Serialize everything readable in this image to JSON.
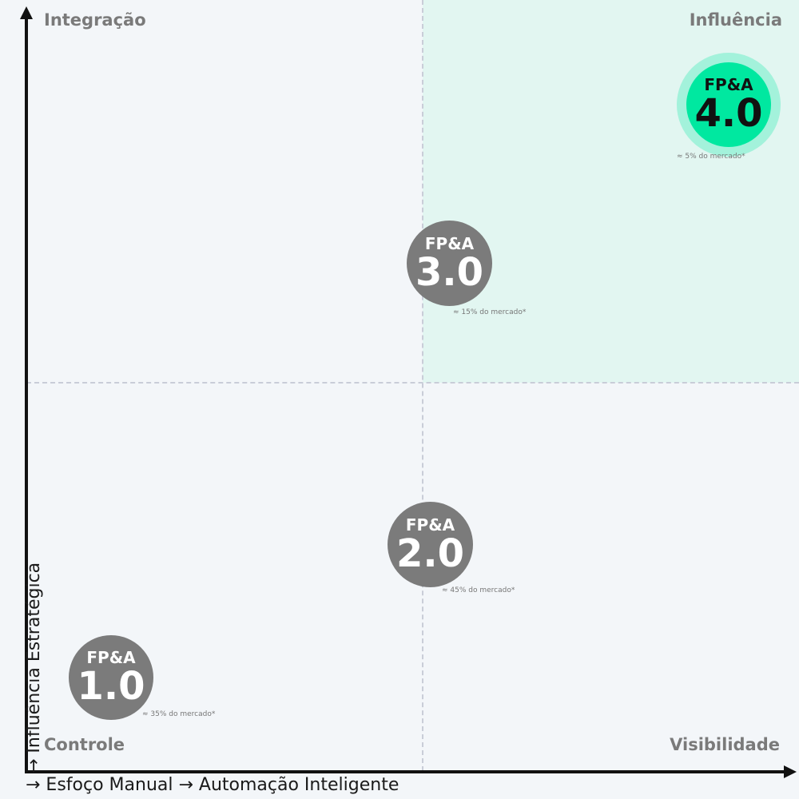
{
  "quadrants": {
    "top_left": "Integração",
    "top_right": "Influência",
    "bottom_left": "Controle",
    "bottom_right": "Visibilidade"
  },
  "axes": {
    "x_title": "→ Esfoço Manual → Automação Inteligente",
    "y_title": "→ Influência Estratégica"
  },
  "stages": [
    {
      "prefix": "FP&A",
      "version": "1.0",
      "share": "≈ 35% do mercado*"
    },
    {
      "prefix": "FP&A",
      "version": "2.0",
      "share": "≈ 45% do mercado*"
    },
    {
      "prefix": "FP&A",
      "version": "3.0",
      "share": "≈ 15% do mercado*"
    },
    {
      "prefix": "FP&A",
      "version": "4.0",
      "share": "≈ 5% do mercado*"
    }
  ],
  "colors": {
    "background": "#f3f6f9",
    "highlight_quadrant": "#e2f6f1",
    "stage_default": "#7b7b7b",
    "stage_current": "#00e8a0",
    "quadrant_label": "#7a7a7a"
  }
}
